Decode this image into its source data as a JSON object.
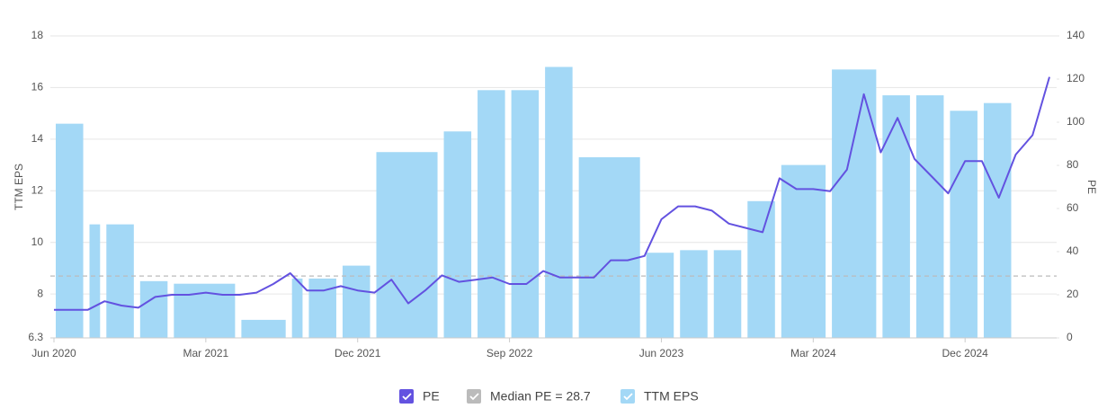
{
  "chart_data": {
    "type": "combo",
    "y_label": "TTM EPS",
    "y2_label": "PE",
    "xlim": [
      "2020-06",
      "2025-05"
    ],
    "xticks": [
      {
        "value": "2020-06",
        "label": "Jun 2020"
      },
      {
        "value": "2021-03",
        "label": "Mar 2021"
      },
      {
        "value": "2021-12",
        "label": "Dec 2021"
      },
      {
        "value": "2022-09",
        "label": "Sep 2022"
      },
      {
        "value": "2023-06",
        "label": "Jun 2023"
      },
      {
        "value": "2024-03",
        "label": "Mar 2024"
      },
      {
        "value": "2024-12",
        "label": "Dec 2024"
      }
    ],
    "ylim": [
      6.3,
      18
    ],
    "yticks": [
      6.3,
      8,
      10,
      12,
      14,
      16,
      18
    ],
    "y2lim": [
      0,
      140
    ],
    "y2ticks": [
      0,
      20,
      40,
      60,
      80,
      100,
      120,
      140
    ],
    "grid": true,
    "legend": "bottom",
    "median_pe": {
      "label": "Median PE = 28.7",
      "value": 28.7,
      "color": "#bbbbbb"
    },
    "series": [
      {
        "name": "TTM EPS",
        "type": "bar",
        "color": "#a3d8f6",
        "x": [
          "2020-06",
          "2020-08",
          "2020-09",
          "2020-11",
          "2021-01",
          "2021-05",
          "2021-08",
          "2021-09",
          "2021-11",
          "2022-01",
          "2022-05",
          "2022-07",
          "2022-09",
          "2022-11",
          "2023-01",
          "2023-05",
          "2023-07",
          "2023-09",
          "2023-11",
          "2024-01",
          "2024-04",
          "2024-07",
          "2024-09",
          "2024-11",
          "2025-01"
        ],
        "values": [
          14.6,
          10.7,
          10.7,
          8.5,
          8.4,
          7.0,
          8.6,
          8.6,
          9.1,
          13.5,
          14.3,
          15.9,
          15.9,
          16.8,
          13.3,
          9.6,
          9.7,
          9.7,
          11.6,
          13.0,
          16.7,
          15.7,
          15.7,
          15.1,
          15.4
        ]
      },
      {
        "name": "PE",
        "type": "line",
        "axis": "y2",
        "color": "#6352e0",
        "x": [
          "2020-06",
          "2020-07",
          "2020-08",
          "2020-09",
          "2020-10",
          "2020-11",
          "2020-12",
          "2021-01",
          "2021-02",
          "2021-03",
          "2021-04",
          "2021-05",
          "2021-06",
          "2021-07",
          "2021-08",
          "2021-09",
          "2021-10",
          "2021-11",
          "2021-12",
          "2022-01",
          "2022-02",
          "2022-03",
          "2022-04",
          "2022-05",
          "2022-06",
          "2022-07",
          "2022-08",
          "2022-09",
          "2022-10",
          "2022-11",
          "2022-12",
          "2023-01",
          "2023-02",
          "2023-03",
          "2023-04",
          "2023-05",
          "2023-06",
          "2023-07",
          "2023-08",
          "2023-09",
          "2023-10",
          "2023-11",
          "2023-12",
          "2024-01",
          "2024-02",
          "2024-03",
          "2024-04",
          "2024-05",
          "2024-06",
          "2024-07",
          "2024-08",
          "2024-09",
          "2024-10",
          "2024-11",
          "2024-12",
          "2025-01",
          "2025-02",
          "2025-03",
          "2025-04",
          "2025-05"
        ],
        "values": [
          13,
          13,
          13,
          17,
          15,
          14,
          19,
          20,
          20,
          21,
          20,
          20,
          21,
          25,
          30,
          22,
          22,
          24,
          22,
          21,
          27,
          16,
          22,
          29,
          26,
          27,
          28,
          25,
          25,
          31,
          28,
          28,
          28,
          36,
          36,
          38,
          55,
          61,
          61,
          59,
          53,
          51,
          49,
          74,
          69,
          69,
          68,
          78,
          113,
          86,
          102,
          83,
          75,
          67,
          82,
          82,
          65,
          85,
          94,
          121
        ]
      }
    ]
  }
}
